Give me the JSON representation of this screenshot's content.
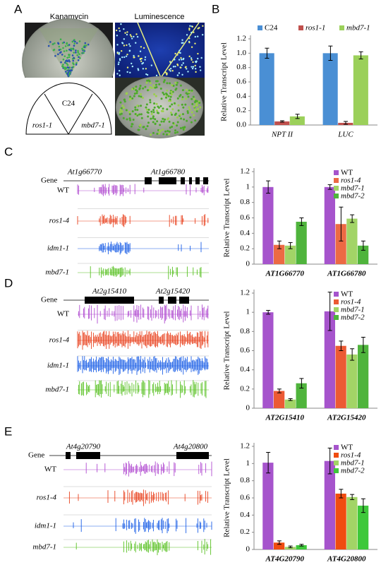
{
  "panel_labels": [
    "A",
    "B",
    "C",
    "D",
    "E"
  ],
  "panel_a": {
    "plate_labels": [
      "Kanamycin",
      "Luminescence"
    ],
    "sectors": [
      "C24",
      "ros1-1",
      "mbd7-1"
    ]
  },
  "tracks": [
    {
      "gene_label": "Gene",
      "genes": [
        "At1g66770",
        "At1g66780"
      ],
      "rows": [
        "WT",
        "ros1-4",
        "idm1-1",
        "mbd7-1"
      ],
      "colors": [
        "#b04ad0",
        "#e8401c",
        "#1a5ee6",
        "#58c022"
      ]
    },
    {
      "gene_label": "Gene",
      "genes": [
        "At2g15410",
        "At2g15420"
      ],
      "rows": [
        "WT",
        "ros1-4",
        "idm1-1",
        "mbd7-1"
      ],
      "colors": [
        "#b04ad0",
        "#e8401c",
        "#1a5ee6",
        "#58c022"
      ]
    },
    {
      "gene_label": "Gene",
      "genes": [
        "At4g20790",
        "At4g20800"
      ],
      "rows": [
        "WT",
        "ros1-4",
        "idm1-1",
        "mbd7-1"
      ],
      "colors": [
        "#b04ad0",
        "#e8401c",
        "#1a5ee6",
        "#58c022"
      ]
    }
  ],
  "chart_data": [
    {
      "type": "bar",
      "ylabel": "Relative Transcript Level",
      "categories": [
        "NPT II",
        "LUC"
      ],
      "ylim": [
        0,
        1.2
      ],
      "yticks": [
        {
          "value": 0,
          "label": "0.0"
        },
        0.2,
        0.4,
        0.6,
        0.8,
        {
          "value": 1,
          "label": "1.0"
        },
        1.2
      ],
      "legend": "top",
      "series": [
        {
          "name": "C24",
          "color": "#4a8fd4",
          "values": [
            1.0,
            1.0
          ],
          "errors": [
            0.07,
            0.1
          ]
        },
        {
          "name": "ros1-1",
          "color": "#c0504d",
          "values": [
            0.05,
            0.03
          ],
          "errors": [
            0.01,
            0.02
          ]
        },
        {
          "name": "mbd7-1",
          "color": "#9bd05a",
          "values": [
            0.12,
            0.97
          ],
          "errors": [
            0.03,
            0.05
          ]
        }
      ]
    },
    {
      "type": "bar",
      "ylabel": "Relative Transcript Level",
      "categories": [
        "AT1G66770",
        "AT1G66780"
      ],
      "ylim": [
        0,
        1.2
      ],
      "yticks": [
        0,
        0.2,
        0.4,
        0.6,
        0.8,
        1,
        1.2
      ],
      "legend": "upper right",
      "series": [
        {
          "name": "WT",
          "color": "#a654cc",
          "values": [
            1.0,
            1.0
          ],
          "errors": [
            0.08,
            0.03
          ]
        },
        {
          "name": "ros1-4",
          "color": "#ec6a44",
          "values": [
            0.25,
            0.52
          ],
          "errors": [
            0.05,
            0.22
          ]
        },
        {
          "name": "mbd7-1",
          "color": "#a2d466",
          "values": [
            0.24,
            0.59
          ],
          "errors": [
            0.04,
            0.05
          ]
        },
        {
          "name": "mbd7-2",
          "color": "#4fb43c",
          "values": [
            0.55,
            0.24
          ],
          "errors": [
            0.05,
            0.06
          ]
        }
      ]
    },
    {
      "type": "bar",
      "ylabel": "Relative Transcript Level",
      "categories": [
        "AT2G15410",
        "AT2G15420"
      ],
      "ylim": [
        0,
        1.2
      ],
      "yticks": [
        0,
        0.2,
        0.4,
        0.6,
        0.8,
        1,
        1.2
      ],
      "legend": "upper right",
      "series": [
        {
          "name": "WT",
          "color": "#a654cc",
          "values": [
            1.0,
            1.01
          ],
          "errors": [
            0.02,
            0.2
          ]
        },
        {
          "name": "ros1-4",
          "color": "#ec5a34",
          "values": [
            0.18,
            0.65
          ],
          "errors": [
            0.02,
            0.05
          ]
        },
        {
          "name": "mbd7-1",
          "color": "#a2d466",
          "values": [
            0.09,
            0.56
          ],
          "errors": [
            0.01,
            0.06
          ]
        },
        {
          "name": "mbd7-2",
          "color": "#4fb43c",
          "values": [
            0.26,
            0.66
          ],
          "errors": [
            0.05,
            0.08
          ]
        }
      ]
    },
    {
      "type": "bar",
      "ylabel": "Relative Transcript Level",
      "categories": [
        "AT4G20790",
        "AT4G20800"
      ],
      "ylim": [
        0,
        1.2
      ],
      "yticks": [
        0,
        0.2,
        0.4,
        0.6,
        0.8,
        1,
        1.2
      ],
      "legend": "upper right",
      "series": [
        {
          "name": "WT",
          "color": "#a654cc",
          "values": [
            1.01,
            1.03
          ],
          "errors": [
            0.12,
            0.15
          ]
        },
        {
          "name": "ros1-4",
          "color": "#f04c10",
          "values": [
            0.08,
            0.65
          ],
          "errors": [
            0.02,
            0.05
          ]
        },
        {
          "name": "mbd7-1",
          "color": "#a2d466",
          "values": [
            0.03,
            0.61
          ],
          "errors": [
            0.01,
            0.03
          ]
        },
        {
          "name": "mbd7-2",
          "color": "#3ec83a",
          "values": [
            0.05,
            0.51
          ],
          "errors": [
            0.01,
            0.08
          ]
        }
      ]
    }
  ]
}
